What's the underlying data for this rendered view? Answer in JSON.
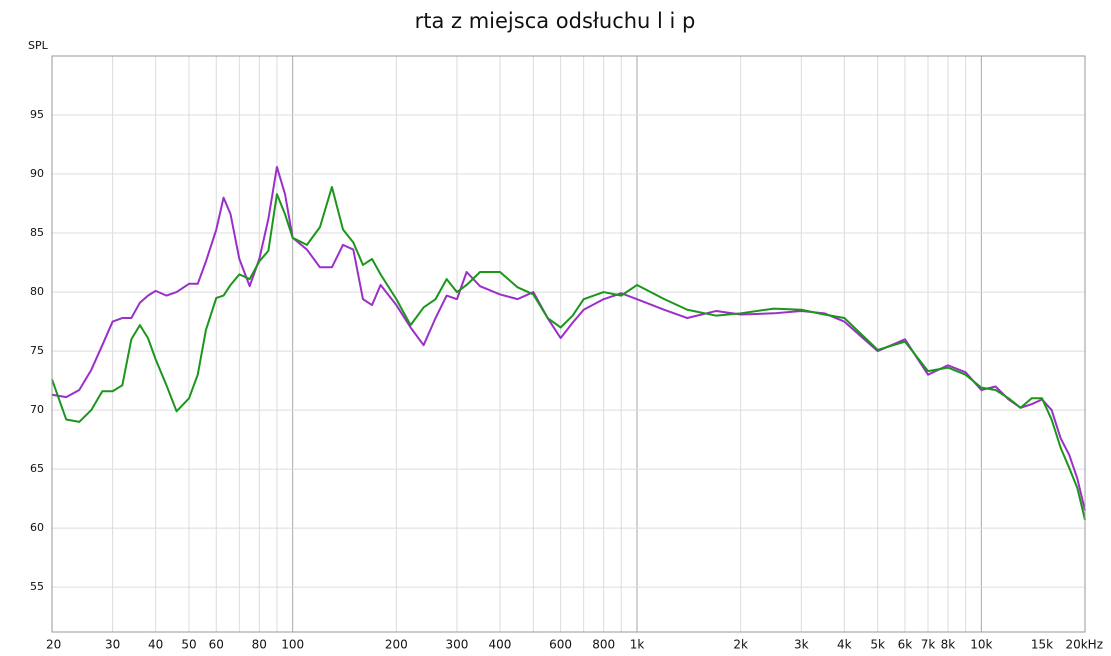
{
  "chart_data": {
    "type": "line",
    "title": "rta z miejsca odsłuchu l i p",
    "y_label": "SPL",
    "xscale": "log",
    "grid": true,
    "xlim": [
      20,
      20000
    ],
    "ylim": [
      51.2,
      100
    ],
    "yticks": [
      55,
      60,
      65,
      70,
      75,
      80,
      85,
      90,
      95
    ],
    "xticks": [
      20,
      30,
      40,
      50,
      60,
      80,
      100,
      200,
      300,
      400,
      600,
      800,
      {
        "value": 1000,
        "label": "1k"
      },
      {
        "value": 2000,
        "label": "2k"
      },
      {
        "value": 3000,
        "label": "3k"
      },
      {
        "value": 4000,
        "label": "4k"
      },
      {
        "value": 5000,
        "label": "5k"
      },
      {
        "value": 6000,
        "label": "6k"
      },
      {
        "value": 7000,
        "label": "7k"
      },
      {
        "value": 8000,
        "label": "8k"
      },
      {
        "value": 10000,
        "label": "10k"
      },
      {
        "value": 15000,
        "label": "15k"
      },
      {
        "value": 20000,
        "label": "20kHz"
      }
    ],
    "x_grid": [
      20,
      30,
      40,
      50,
      60,
      70,
      80,
      90,
      100,
      200,
      300,
      400,
      500,
      600,
      700,
      800,
      900,
      1000,
      2000,
      3000,
      4000,
      5000,
      6000,
      7000,
      8000,
      9000,
      10000,
      20000
    ],
    "x": [
      20,
      22,
      24,
      26,
      28,
      30,
      32,
      34,
      36,
      38,
      40,
      43,
      46,
      50,
      53,
      56,
      60,
      63,
      66,
      70,
      75,
      80,
      85,
      90,
      95,
      100,
      110,
      120,
      130,
      140,
      150,
      160,
      170,
      180,
      200,
      220,
      240,
      260,
      280,
      300,
      320,
      350,
      400,
      450,
      500,
      550,
      600,
      650,
      700,
      800,
      900,
      1000,
      1200,
      1400,
      1700,
      2000,
      2500,
      3000,
      3500,
      4000,
      5000,
      6000,
      7000,
      8000,
      9000,
      10000,
      11000,
      12000,
      13000,
      14000,
      15000,
      16000,
      17000,
      18000,
      19000,
      20000
    ],
    "series": [
      {
        "color": "#9b2fc9",
        "values": [
          71.3,
          71.1,
          71.7,
          73.4,
          75.5,
          77.5,
          77.8,
          77.8,
          79.1,
          79.7,
          80.1,
          79.7,
          80.0,
          80.7,
          80.7,
          82.6,
          85.3,
          88.0,
          86.6,
          82.8,
          80.5,
          82.8,
          86.2,
          90.6,
          88.3,
          84.6,
          83.6,
          82.1,
          82.1,
          84.0,
          83.6,
          79.4,
          78.9,
          80.6,
          78.9,
          77.0,
          75.5,
          77.8,
          79.7,
          79.4,
          81.7,
          80.5,
          79.8,
          79.4,
          80.0,
          77.8,
          76.1,
          77.4,
          78.5,
          79.4,
          79.9,
          79.4,
          78.5,
          77.8,
          78.4,
          78.1,
          78.2,
          78.4,
          78.2,
          77.5,
          75.0,
          76.0,
          73.0,
          73.8,
          73.2,
          71.7,
          72.0,
          70.9,
          70.2,
          70.5,
          70.9,
          70.0,
          67.6,
          66.2,
          64.2,
          61.5
        ]
      },
      {
        "color": "#1b961b",
        "values": [
          72.6,
          69.2,
          69.0,
          70.0,
          71.6,
          71.6,
          72.1,
          76.0,
          77.2,
          76.1,
          74.3,
          72.1,
          69.9,
          71.0,
          73.0,
          76.8,
          79.5,
          79.7,
          80.6,
          81.5,
          81.1,
          82.6,
          83.5,
          88.3,
          86.6,
          84.6,
          84.0,
          85.5,
          88.9,
          85.3,
          84.2,
          82.3,
          82.8,
          81.5,
          79.4,
          77.2,
          78.7,
          79.4,
          81.1,
          80.0,
          80.6,
          81.7,
          81.7,
          80.4,
          79.8,
          77.8,
          77.0,
          78.0,
          79.4,
          80.0,
          79.7,
          80.6,
          79.4,
          78.5,
          78.0,
          78.2,
          78.6,
          78.5,
          78.1,
          77.8,
          75.1,
          75.8,
          73.3,
          73.6,
          73.0,
          71.9,
          71.7,
          71.0,
          70.2,
          71.0,
          71.0,
          69.2,
          66.8,
          65.1,
          63.4,
          60.7
        ]
      }
    ]
  }
}
